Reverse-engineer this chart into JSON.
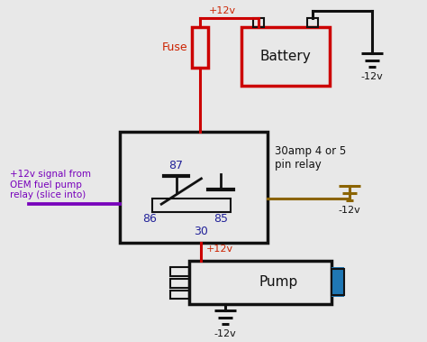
{
  "bg_color": "#e8e8e8",
  "figsize": [
    4.74,
    3.79
  ],
  "dpi": 100,
  "colors": {
    "red": "#cc0000",
    "black": "#111111",
    "brown": "#8B6400",
    "purple": "#7700bb",
    "text_red": "#cc2200",
    "text_purple": "#7700bb",
    "text_black": "#111111",
    "text_darkblue": "#222299"
  },
  "labels": {
    "battery": "Battery",
    "pump": "Pump",
    "fuse": "Fuse",
    "relay_info": "30amp 4 or 5\npin relay",
    "plus12v_top": "+12v",
    "minus12v_bat": "-12v",
    "minus12v_right": "-12v",
    "minus12v_bottom": "-12v",
    "plus12v_bottom": "+12v",
    "pin_87": "87",
    "pin_86": "86",
    "pin_85": "85",
    "pin_30": "30",
    "signal_label": "+12v signal from\nOEM fuel pump\nrelay (slice into)"
  }
}
